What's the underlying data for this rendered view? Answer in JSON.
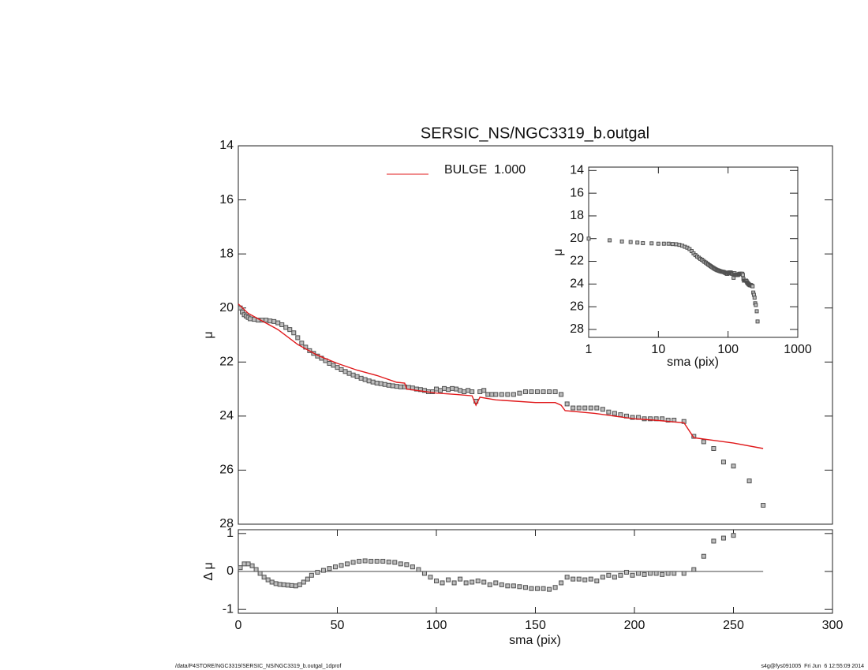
{
  "chart_data": [
    {
      "type": "scatter",
      "title": "SERSIC_NS/NGC3319_b.outgal",
      "y_label": "μ",
      "x": [
        1,
        2,
        3,
        4,
        5,
        6,
        8,
        10,
        12,
        14,
        16,
        18,
        20,
        22,
        24,
        26,
        28,
        30,
        32,
        34,
        36,
        38,
        40,
        42,
        44,
        46,
        48,
        50,
        52,
        54,
        56,
        58,
        60,
        62,
        64,
        66,
        68,
        70,
        72,
        74,
        76,
        78,
        80,
        82,
        84,
        86,
        88,
        90,
        92,
        94,
        96,
        98,
        100,
        102,
        104,
        106,
        108,
        110,
        112,
        114,
        116,
        118,
        120,
        122,
        124,
        126,
        128,
        130,
        133,
        136,
        139,
        142,
        145,
        148,
        151,
        154,
        157,
        160,
        163,
        166,
        169,
        172,
        175,
        178,
        181,
        184,
        187,
        190,
        193,
        196,
        199,
        202,
        205,
        208,
        211,
        214,
        217,
        220,
        225,
        230,
        235,
        240,
        245,
        250,
        258,
        265
      ],
      "values": [
        20.0,
        20.15,
        20.25,
        20.3,
        20.35,
        20.4,
        20.42,
        20.45,
        20.45,
        20.45,
        20.48,
        20.5,
        20.55,
        20.62,
        20.72,
        20.8,
        20.92,
        21.1,
        21.3,
        21.45,
        21.58,
        21.68,
        21.78,
        21.86,
        21.95,
        22.05,
        22.12,
        22.2,
        22.28,
        22.35,
        22.42,
        22.48,
        22.54,
        22.6,
        22.65,
        22.7,
        22.74,
        22.78,
        22.8,
        22.83,
        22.86,
        22.88,
        22.9,
        22.92,
        22.92,
        22.94,
        22.96,
        23.0,
        23.02,
        23.05,
        23.1,
        23.1,
        23.0,
        23.05,
        22.98,
        23.02,
        22.98,
        23.0,
        23.05,
        23.1,
        23.05,
        23.1,
        23.45,
        23.1,
        23.05,
        23.2,
        23.2,
        23.2,
        23.2,
        23.2,
        23.2,
        23.15,
        23.1,
        23.1,
        23.1,
        23.1,
        23.1,
        23.1,
        23.2,
        23.55,
        23.7,
        23.7,
        23.7,
        23.7,
        23.7,
        23.75,
        23.85,
        23.9,
        23.95,
        24.0,
        24.05,
        24.05,
        24.1,
        24.1,
        24.1,
        24.1,
        24.15,
        24.15,
        24.2,
        24.75,
        24.95,
        25.2,
        25.7,
        25.85,
        26.4,
        27.3
      ],
      "color": "#505050",
      "model": {
        "name": "BULGE  1.000",
        "color": "#e0191b",
        "x": [
          0,
          5,
          10,
          20,
          30,
          40,
          50,
          60,
          70,
          80,
          84,
          85,
          100,
          110,
          118,
          120,
          122,
          130,
          140,
          150,
          160,
          163,
          165,
          180,
          190,
          200,
          210,
          225,
          230,
          240,
          250,
          265
        ],
        "values": [
          19.85,
          20.2,
          20.4,
          20.8,
          21.35,
          21.75,
          22.05,
          22.3,
          22.5,
          22.75,
          22.78,
          23.0,
          23.15,
          23.2,
          23.25,
          23.6,
          23.3,
          23.4,
          23.45,
          23.5,
          23.5,
          23.6,
          23.8,
          23.9,
          24.0,
          24.1,
          24.15,
          24.25,
          24.8,
          24.9,
          25.0,
          25.2
        ]
      },
      "xlim": [
        0,
        300
      ],
      "ylim": [
        28,
        14
      ],
      "yticks": [
        14,
        16,
        18,
        20,
        22,
        24,
        26,
        28
      ]
    },
    {
      "type": "scatter",
      "x_label": "sma (pix)",
      "y_label": "Δ μ",
      "x": [
        1,
        3,
        5,
        7,
        9,
        11,
        13,
        15,
        17,
        19,
        21,
        23,
        25,
        27,
        29,
        31,
        33,
        35,
        37,
        40,
        43,
        46,
        49,
        52,
        55,
        58,
        61,
        64,
        67,
        70,
        73,
        76,
        79,
        82,
        85,
        88,
        91,
        94,
        97,
        100,
        103,
        106,
        109,
        112,
        115,
        118,
        121,
        124,
        127,
        130,
        133,
        136,
        139,
        142,
        145,
        148,
        151,
        154,
        157,
        160,
        163,
        166,
        169,
        172,
        175,
        178,
        181,
        184,
        187,
        190,
        193,
        196,
        199,
        202,
        205,
        208,
        211,
        214,
        217,
        220,
        225,
        230,
        235,
        240,
        245,
        250
      ],
      "values": [
        0.1,
        0.2,
        0.2,
        0.15,
        0.05,
        -0.05,
        -0.15,
        -0.22,
        -0.28,
        -0.32,
        -0.34,
        -0.35,
        -0.36,
        -0.37,
        -0.38,
        -0.35,
        -0.28,
        -0.2,
        -0.1,
        -0.02,
        0.03,
        0.08,
        0.12,
        0.16,
        0.2,
        0.24,
        0.27,
        0.28,
        0.27,
        0.27,
        0.27,
        0.25,
        0.24,
        0.2,
        0.18,
        0.12,
        0.05,
        -0.05,
        -0.15,
        -0.25,
        -0.3,
        -0.22,
        -0.3,
        -0.2,
        -0.3,
        -0.28,
        -0.25,
        -0.28,
        -0.35,
        -0.3,
        -0.35,
        -0.38,
        -0.38,
        -0.4,
        -0.42,
        -0.45,
        -0.45,
        -0.45,
        -0.47,
        -0.42,
        -0.3,
        -0.15,
        -0.2,
        -0.2,
        -0.22,
        -0.2,
        -0.25,
        -0.15,
        -0.1,
        -0.15,
        -0.1,
        -0.02,
        -0.1,
        -0.05,
        -0.08,
        -0.05,
        -0.05,
        -0.08,
        -0.05,
        -0.05,
        -0.05,
        0.05,
        0.4,
        0.8,
        0.88,
        0.95
      ],
      "color": "#505050",
      "xlim": [
        0,
        300
      ],
      "xticks": [
        0,
        50,
        100,
        150,
        200,
        250,
        300
      ],
      "ylim": [
        -1.1,
        1.1
      ],
      "yticks": [
        -1,
        0,
        1
      ]
    },
    {
      "type": "scatter",
      "x_label": "sma (pix)",
      "y_label": "μ",
      "log_x": true,
      "line_color": "#333333",
      "xlim": [
        1,
        1000
      ],
      "xticks": [
        1,
        10,
        100,
        1000
      ],
      "ylim": [
        28.7,
        13.7
      ],
      "yticks": [
        14,
        16,
        18,
        20,
        22,
        24,
        26,
        28
      ]
    }
  ],
  "footer": {
    "left": "/data/P4STORE/NGC3319/SERSIC_NS/NGC3319_b.outgal_1dprof",
    "right": "s4g@fys091005  Fri Jun  6 12:55:09 2014"
  }
}
